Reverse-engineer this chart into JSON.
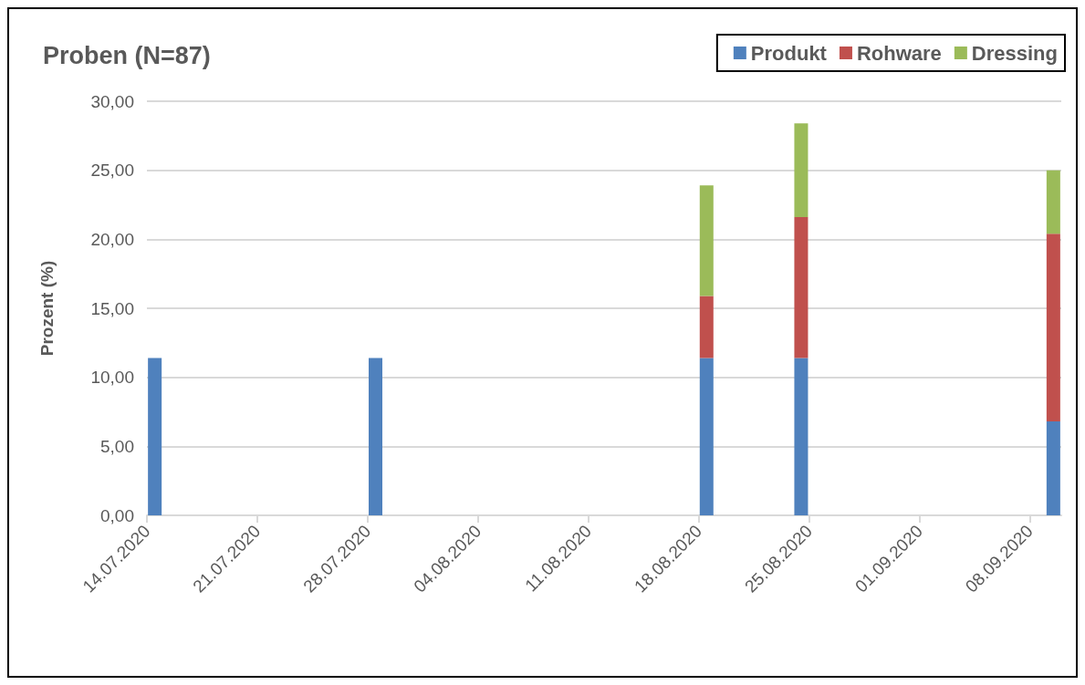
{
  "chart_data": {
    "type": "bar",
    "title": "Proben (N=87)",
    "ylabel": "Prozent (%)",
    "stacked": true,
    "x": [
      "2020-07-14",
      "2020-07-28",
      "2020-08-18",
      "2020-08-24",
      "2020-09-09"
    ],
    "series": [
      {
        "name": "Produkt",
        "color": "#4f81bd",
        "values": [
          11.4,
          11.4,
          11.4,
          11.4,
          6.8
        ]
      },
      {
        "name": "Rohware",
        "color": "#c0504d",
        "values": [
          null,
          null,
          4.5,
          10.2,
          13.6
        ]
      },
      {
        "name": "Dressing",
        "color": "#9bbb59",
        "values": [
          null,
          null,
          8.0,
          6.8,
          4.6
        ]
      }
    ],
    "xlim": [
      "2020-07-14",
      "2020-09-10"
    ],
    "xticks": [
      {
        "value": "2020-07-14",
        "label": "14.07.2020"
      },
      {
        "value": "2020-07-21",
        "label": "21.07.2020"
      },
      {
        "value": "2020-07-28",
        "label": "28.07.2020"
      },
      {
        "value": "2020-08-04",
        "label": "04.08.2020"
      },
      {
        "value": "2020-08-11",
        "label": "11.08.2020"
      },
      {
        "value": "2020-08-18",
        "label": "18.08.2020"
      },
      {
        "value": "2020-08-25",
        "label": "25.08.2020"
      },
      {
        "value": "2020-09-01",
        "label": "01.09.2020"
      },
      {
        "value": "2020-09-08",
        "label": "08.09.2020"
      }
    ],
    "ylim": [
      0,
      30
    ],
    "yticks": [
      {
        "value": 0,
        "label": "0,00"
      },
      {
        "value": 5,
        "label": "5,00"
      },
      {
        "value": 10,
        "label": "10,00"
      },
      {
        "value": 15,
        "label": "15,00"
      },
      {
        "value": 20,
        "label": "20,00"
      },
      {
        "value": 25,
        "label": "25,00"
      },
      {
        "value": 30,
        "label": "30,00"
      }
    ],
    "grid": "y",
    "legend": "top right"
  }
}
